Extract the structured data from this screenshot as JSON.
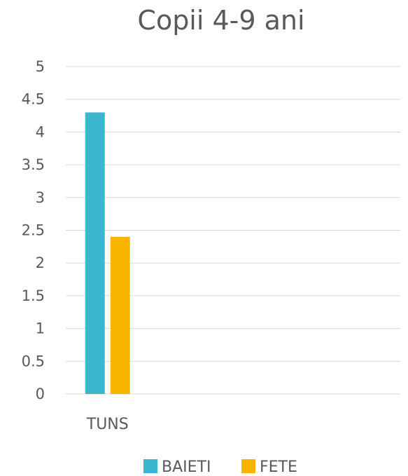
{
  "chart_data": {
    "type": "bar",
    "title": "Copii 4-9 ani",
    "categories": [
      "TUNS"
    ],
    "series": [
      {
        "name": "BAIETI",
        "values": [
          4.3
        ],
        "color": "#3cb6ce"
      },
      {
        "name": "FETE",
        "values": [
          2.4
        ],
        "color": "#f7b500"
      }
    ],
    "ylim": [
      0,
      5
    ],
    "yticks": [
      "0",
      "0.5",
      "1",
      "1.5",
      "2",
      "2.5",
      "3",
      "3.5",
      "4",
      "4.5",
      "5"
    ],
    "xlabel": "",
    "ylabel": "",
    "grid": true,
    "legend_position": "bottom"
  }
}
